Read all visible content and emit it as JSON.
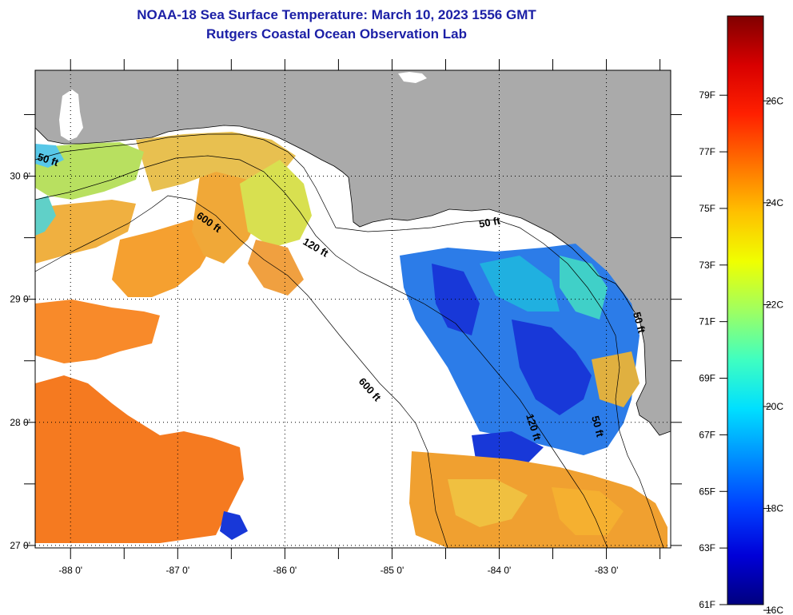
{
  "header": {
    "title": "NOAA-18 Sea Surface Temperature:  March 10, 2023 1556 GMT",
    "subtitle": "Rutgers Coastal Ocean Observation Lab"
  },
  "map": {
    "lon_range": [
      -88.33,
      -82.4
    ],
    "lat_range": [
      26.98,
      30.86
    ],
    "x_ticks": [
      {
        "value": -88,
        "label": "-88 0'"
      },
      {
        "value": -87,
        "label": "-87 0'"
      },
      {
        "value": -86,
        "label": "-86 0'"
      },
      {
        "value": -85,
        "label": "-85 0'"
      },
      {
        "value": -84,
        "label": "-84 0'"
      },
      {
        "value": -83,
        "label": "-83 0'"
      }
    ],
    "y_ticks": [
      {
        "value": 30,
        "label": "30 0'"
      },
      {
        "value": 29,
        "label": "29 0'"
      },
      {
        "value": 28,
        "label": "28 0'"
      },
      {
        "value": 27,
        "label": "27 0'"
      }
    ],
    "contour_labels": [
      {
        "text": "50 ft",
        "key": "c50a"
      },
      {
        "text": "600 ft",
        "key": "c600a"
      },
      {
        "text": "120 ft",
        "key": "c120a"
      },
      {
        "text": "50 ft",
        "key": "c50b"
      },
      {
        "text": "600 ft",
        "key": "c600b"
      },
      {
        "text": "120 ft",
        "key": "c120b"
      },
      {
        "text": "50 ft",
        "key": "c50c"
      },
      {
        "text": "50 ft",
        "key": "c50d"
      }
    ],
    "colors": {
      "land": "#aaaaaa",
      "nodata": "#ffffff",
      "frame": "#000000"
    }
  },
  "colorbar": {
    "fahrenheit": [
      {
        "value": 79,
        "label": "79F"
      },
      {
        "value": 77,
        "label": "77F"
      },
      {
        "value": 75,
        "label": "75F"
      },
      {
        "value": 73,
        "label": "73F"
      },
      {
        "value": 71,
        "label": "71F"
      },
      {
        "value": 69,
        "label": "69F"
      },
      {
        "value": 67,
        "label": "67F"
      },
      {
        "value": 65,
        "label": "65F"
      },
      {
        "value": 63,
        "label": "63F"
      },
      {
        "value": 61,
        "label": "61F"
      }
    ],
    "celsius": [
      {
        "value": 26,
        "label": "26C"
      },
      {
        "value": 24,
        "label": "24C"
      },
      {
        "value": 22,
        "label": "22C"
      },
      {
        "value": 20,
        "label": "20C"
      },
      {
        "value": 18,
        "label": "18C"
      },
      {
        "value": 16,
        "label": "16C"
      }
    ],
    "gradient": [
      "#00007f",
      "#0000d8",
      "#0040ff",
      "#0090ff",
      "#00e0ff",
      "#40ffc0",
      "#a0ff60",
      "#f0ff00",
      "#ffc000",
      "#ff7000",
      "#ff2000",
      "#d80000",
      "#800000"
    ]
  }
}
